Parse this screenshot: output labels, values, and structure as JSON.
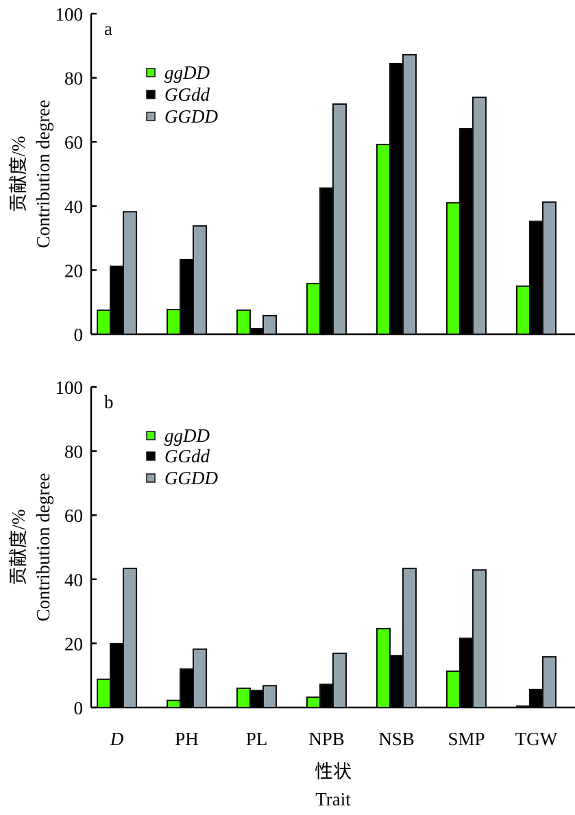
{
  "chart_data": {
    "type": "bar",
    "categories": [
      "D",
      "PH",
      "PL",
      "NPB",
      "NSB",
      "SMP",
      "TGW"
    ],
    "categories_italic": [
      true,
      false,
      false,
      false,
      false,
      false,
      false
    ],
    "xlabel_cn": "性状",
    "xlabel": "Trait",
    "ylabel_cn": "贡献度/%",
    "ylabel": "Contribution degree",
    "ylim": [
      0,
      100
    ],
    "yticks": [
      0,
      20,
      40,
      60,
      80,
      100
    ],
    "grid": false,
    "legend_placement": "top-left",
    "series_colors": {
      "ggDD": "#4cff00",
      "GGdd": "#000000",
      "GGDD": "#93a4ae"
    },
    "panels": [
      {
        "label": "a",
        "series": [
          {
            "name": "ggDD",
            "values": [
              7.5,
              7.7,
              7.5,
              15.8,
              59.2,
              41.0,
              15.0
            ]
          },
          {
            "name": "GGdd",
            "values": [
              21.2,
              23.3,
              1.7,
              45.6,
              84.4,
              64.1,
              35.2
            ]
          },
          {
            "name": "GGDD",
            "values": [
              38.2,
              33.8,
              5.8,
              71.8,
              87.2,
              73.9,
              41.2
            ]
          }
        ]
      },
      {
        "label": "b",
        "series": [
          {
            "name": "ggDD",
            "values": [
              8.8,
              2.2,
              6.0,
              3.2,
              24.6,
              11.3,
              0.4
            ]
          },
          {
            "name": "GGdd",
            "values": [
              19.9,
              12.0,
              5.3,
              7.2,
              16.2,
              21.6,
              5.6
            ]
          },
          {
            "name": "GGDD",
            "values": [
              43.4,
              18.2,
              6.8,
              16.9,
              43.4,
              42.9,
              15.8
            ]
          }
        ]
      }
    ]
  }
}
